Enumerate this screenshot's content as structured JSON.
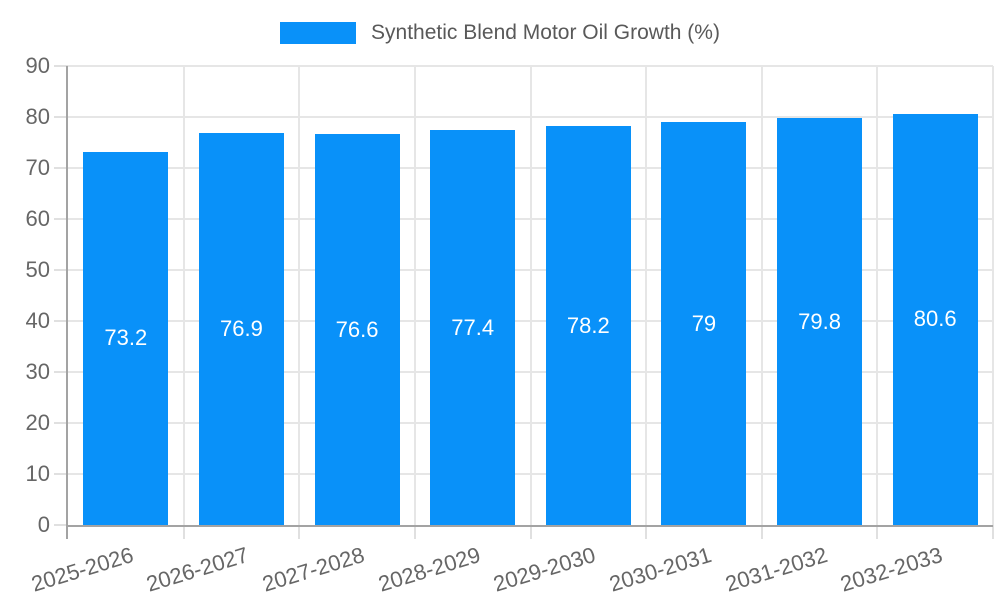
{
  "legend": {
    "label": "Synthetic Blend Motor Oil Growth (%)"
  },
  "chart_data": {
    "type": "bar",
    "title": "Synthetic Blend Motor Oil Growth (%)",
    "categories": [
      "2025-2026",
      "2026-2027",
      "2027-2028",
      "2028-2029",
      "2029-2030",
      "2030-2031",
      "2031-2032",
      "2032-2033"
    ],
    "values": [
      73.2,
      76.9,
      76.6,
      77.4,
      78.2,
      79,
      79.8,
      80.6
    ],
    "value_labels": [
      "73.2",
      "76.9",
      "76.6",
      "77.4",
      "78.2",
      "79",
      "79.8",
      "80.6"
    ],
    "series_name": "Synthetic Blend Motor Oil Growth (%)",
    "xlabel": "",
    "ylabel": "",
    "ylim": [
      0,
      90
    ],
    "y_ticks": [
      0,
      10,
      20,
      30,
      40,
      50,
      60,
      70,
      80,
      90
    ],
    "grid": true,
    "legend_position": "top",
    "x_label_rotation_deg": -17,
    "colors": {
      "bar": "#0991f9",
      "value_label": "#ffffff",
      "axis_line": "#a3a3a3",
      "gridline": "#e6e6e6",
      "tick_mark": "#e0e0e0",
      "tick_text": "#666666",
      "legend_text": "#595959",
      "background": "#ffffff"
    }
  }
}
